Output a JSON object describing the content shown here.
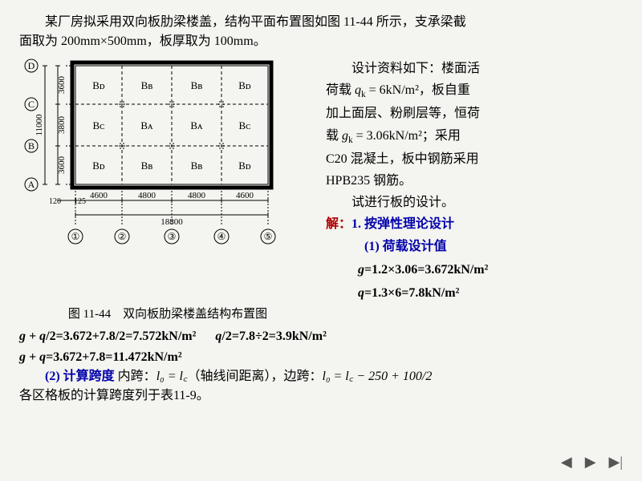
{
  "intro": {
    "line1": "某厂房拟采用双向板肋梁楼盖，结构平面布置图如图 11-44 所示，支承梁截",
    "line2": "面取为 200mm×500mm，板厚取为 100mm。"
  },
  "sideText": {
    "s1": "设计资料如下：楼面活",
    "s2_a": "荷载 ",
    "s2_b": "q",
    "s2_c": "k",
    "s2_d": " = 6kN/m²，板自重",
    "s3": "加上面层、粉刷层等，恒荷",
    "s4_a": "载 ",
    "s4_b": "g",
    "s4_c": "k",
    "s4_d": " = 3.06kN/m²；采用",
    "s5": "C20 混凝土，板中钢筋采用",
    "s6": "HPB235 钢筋。",
    "s7": "试进行板的设计。"
  },
  "solution": {
    "jie": "解：",
    "step1": "1. 按弹性理论设计",
    "sub1": "(1) 荷载设计值",
    "g_eq": "g",
    "g_val": "=1.2×3.06=3.672kN/m²",
    "q_eq": "q",
    "q_val": "=1.3×6=7.8kN/m²",
    "gqhalf_l": "g + q",
    "gqhalf_r": "/2=3.672+7.8/2=7.572kN/m²",
    "qhalf_l": "q",
    "qhalf_r": "/2=7.8÷2=3.9kN/m²",
    "gq_l": "g + q",
    "gq_r": "=3.672+7.8=11.472kN/m²",
    "sub2": "(2) 计算跨度",
    "span_inner_a": " 内跨：",
    "span_inner_b": "l₀ = l꜀",
    "span_inner_c": "（轴线间距离），边跨：",
    "span_outer": "l₀ = l꜀ − 250 + 100/2",
    "last": "各区格板的计算跨度列于表11-9。"
  },
  "caption": "图 11-44　双向板肋梁楼盖结构布置图",
  "diagram": {
    "gridLabelsTop": [
      "D",
      "C",
      "B",
      "A"
    ],
    "gridLabelsBottom": [
      "①",
      "②",
      "③",
      "④",
      "⑤"
    ],
    "rowDims": [
      "3600",
      "3800",
      "3600"
    ],
    "rowTotal": "11000",
    "colDims": [
      "4600",
      "4800",
      "4800",
      "4600"
    ],
    "colTotal": "18800",
    "offset1": "120",
    "offset2": "125",
    "cellLabels": [
      [
        "Bᴅ",
        "Bʙ",
        "Bʙ",
        "Bᴅ"
      ],
      [
        "Bᴄ",
        "Bᴀ",
        "Bᴀ",
        "Bᴄ"
      ],
      [
        "Bᴅ",
        "Bʙ",
        "Bʙ",
        "Bᴅ"
      ]
    ],
    "colors": {
      "line": "#000",
      "text": "#000",
      "bg": "#f4f4f0"
    }
  }
}
